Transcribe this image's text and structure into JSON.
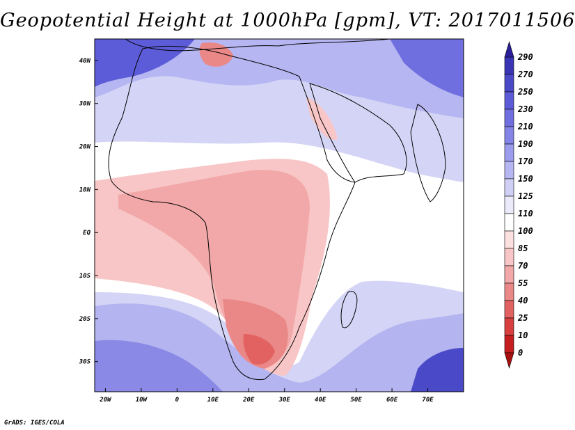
{
  "title": "Geopotential Height at 1000hPa [gpm], VT: 2017011506",
  "footer": "GrADS: IGES/COLA",
  "map": {
    "projection": "latlon",
    "lon_range": [
      -23,
      80
    ],
    "lat_range": [
      -37,
      45
    ],
    "lon_ticks": [
      {
        "label": "20W",
        "value": -20
      },
      {
        "label": "10W",
        "value": -10
      },
      {
        "label": "0",
        "value": 0
      },
      {
        "label": "10E",
        "value": 10
      },
      {
        "label": "20E",
        "value": 20
      },
      {
        "label": "30E",
        "value": 30
      },
      {
        "label": "40E",
        "value": 40
      },
      {
        "label": "50E",
        "value": 50
      },
      {
        "label": "60E",
        "value": 60
      },
      {
        "label": "70E",
        "value": 70
      }
    ],
    "lat_ticks": [
      {
        "label": "40N",
        "value": 40
      },
      {
        "label": "30N",
        "value": 30
      },
      {
        "label": "20N",
        "value": 20
      },
      {
        "label": "10N",
        "value": 10
      },
      {
        "label": "EQ",
        "value": 0
      },
      {
        "label": "10S",
        "value": -10
      },
      {
        "label": "20S",
        "value": -20
      },
      {
        "label": "30S",
        "value": -30
      }
    ]
  },
  "colorbar": {
    "levels": [
      "290",
      "270",
      "250",
      "230",
      "210",
      "190",
      "170",
      "150",
      "125",
      "110",
      "100",
      "85",
      "70",
      "55",
      "40",
      "25",
      "10",
      "0"
    ],
    "colors": [
      "#2a1f99",
      "#3a35b5",
      "#4a4ac8",
      "#5c5cd8",
      "#6f6fe0",
      "#8484e8",
      "#9c9cee",
      "#b6b6f2",
      "#d0d0f6",
      "#eaeafb",
      "#ffffff",
      "#fde0e0",
      "#f8c6c6",
      "#f2a8a8",
      "#ea8888",
      "#e26262",
      "#d84040",
      "#c41e1e",
      "#a81010"
    ]
  }
}
